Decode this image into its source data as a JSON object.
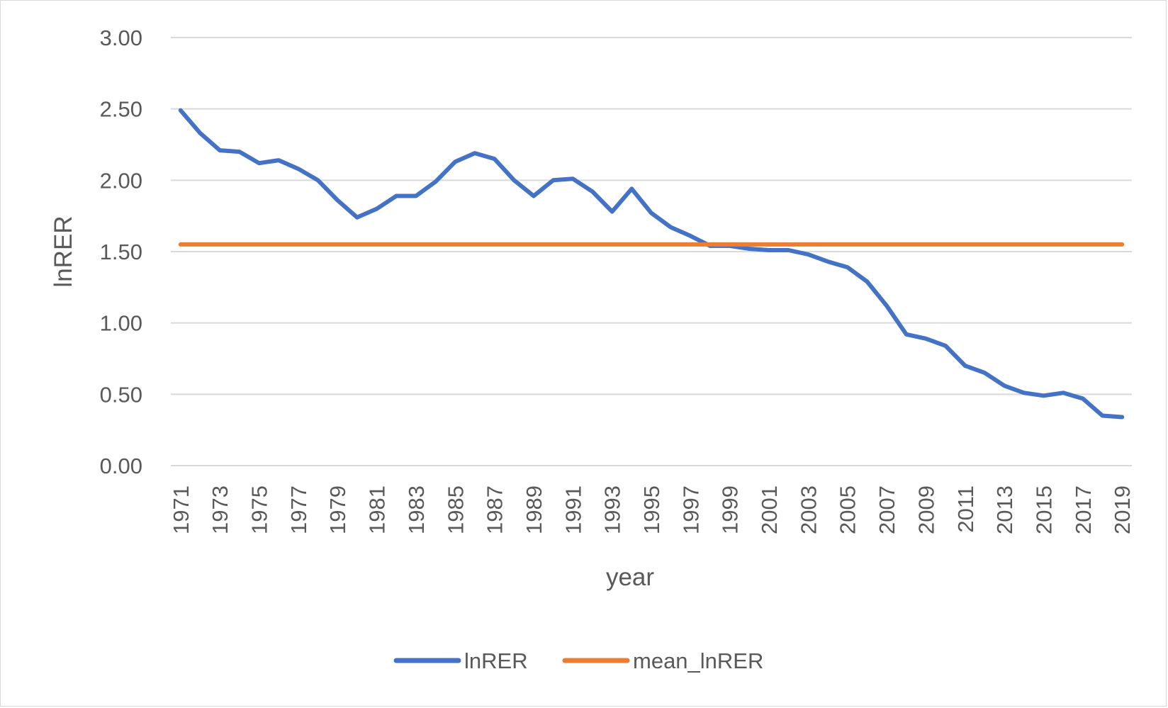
{
  "chart_data": {
    "type": "line",
    "title": "",
    "xlabel": "year",
    "ylabel": "lnRER",
    "ylim": [
      0,
      3
    ],
    "y_ticks": [
      "0.00",
      "0.50",
      "1.00",
      "1.50",
      "2.00",
      "2.50",
      "3.00"
    ],
    "y_tick_values": [
      0,
      0.5,
      1,
      1.5,
      2,
      2.5,
      3
    ],
    "x": [
      1971,
      1972,
      1973,
      1974,
      1975,
      1976,
      1977,
      1978,
      1979,
      1980,
      1981,
      1982,
      1983,
      1984,
      1985,
      1986,
      1987,
      1988,
      1989,
      1990,
      1991,
      1992,
      1993,
      1994,
      1995,
      1996,
      1997,
      1998,
      1999,
      2000,
      2001,
      2002,
      2003,
      2004,
      2005,
      2006,
      2007,
      2008,
      2009,
      2010,
      2011,
      2012,
      2013,
      2014,
      2015,
      2016,
      2017,
      2018,
      2019
    ],
    "x_tick_labels": [
      "1971",
      "1973",
      "1975",
      "1977",
      "1979",
      "1981",
      "1983",
      "1985",
      "1987",
      "1989",
      "1991",
      "1993",
      "1995",
      "1997",
      "1999",
      "2001",
      "2003",
      "2005",
      "2007",
      "2009",
      "2011",
      "2013",
      "2015",
      "2017",
      "2019"
    ],
    "grid": true,
    "legend_position": "bottom",
    "series": [
      {
        "name": "lnRER",
        "color": "#4472C4",
        "values": [
          2.49,
          2.33,
          2.21,
          2.2,
          2.12,
          2.14,
          2.08,
          2.0,
          1.86,
          1.74,
          1.8,
          1.89,
          1.89,
          1.99,
          2.13,
          2.19,
          2.15,
          2.0,
          1.89,
          2.0,
          2.01,
          1.92,
          1.78,
          1.94,
          1.77,
          1.67,
          1.61,
          1.54,
          1.54,
          1.52,
          1.51,
          1.51,
          1.48,
          1.43,
          1.39,
          1.29,
          1.12,
          0.92,
          0.89,
          0.84,
          0.7,
          0.65,
          0.56,
          0.51,
          0.49,
          0.51,
          0.47,
          0.35,
          0.34
        ]
      },
      {
        "name": "mean_lnRER",
        "color": "#ED7D31",
        "values": [
          1.55,
          1.55,
          1.55,
          1.55,
          1.55,
          1.55,
          1.55,
          1.55,
          1.55,
          1.55,
          1.55,
          1.55,
          1.55,
          1.55,
          1.55,
          1.55,
          1.55,
          1.55,
          1.55,
          1.55,
          1.55,
          1.55,
          1.55,
          1.55,
          1.55,
          1.55,
          1.55,
          1.55,
          1.55,
          1.55,
          1.55,
          1.55,
          1.55,
          1.55,
          1.55,
          1.55,
          1.55,
          1.55,
          1.55,
          1.55,
          1.55,
          1.55,
          1.55,
          1.55,
          1.55,
          1.55,
          1.55,
          1.55,
          1.55
        ]
      }
    ],
    "gridline_color": "#d9d9d9",
    "text_color": "#595959"
  }
}
